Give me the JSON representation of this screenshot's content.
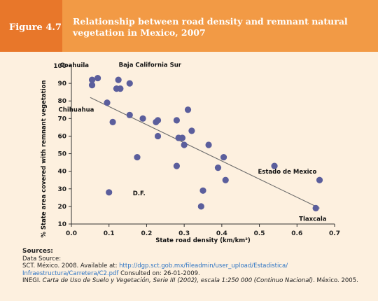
{
  "header": {
    "figure_label": "Figure 4.7",
    "title": "Relationship between road density and remnant natural vegetation in Mexico, 2007",
    "colors": {
      "bar": "#f29a45",
      "tab": "#e8772a",
      "background": "#fdf0df",
      "marker": "#5b5e9c"
    }
  },
  "chart_data": {
    "type": "scatter",
    "title": "Relationship between road density and remnant natural vegetation in Mexico, 2007",
    "xlabel": "State road density (km/km²)",
    "ylabel": "% State area covered with remnant vegetation",
    "xlim": [
      0,
      0.7
    ],
    "ylim": [
      10,
      100
    ],
    "x_ticks": [
      "0.0",
      "0.1",
      "0.2",
      "0.3",
      "0.4",
      "0.5",
      "0.6",
      "0.7"
    ],
    "y_ticks": [
      "10",
      "20",
      "30",
      "40",
      "50",
      "60",
      "70",
      "80",
      "90",
      "100"
    ],
    "grid": false,
    "trendline": {
      "x": [
        0.05,
        0.66
      ],
      "y": [
        82,
        19
      ]
    },
    "points": [
      {
        "x": 0.055,
        "y": 92
      },
      {
        "x": 0.07,
        "y": 93
      },
      {
        "x": 0.055,
        "y": 89
      },
      {
        "x": 0.125,
        "y": 92
      },
      {
        "x": 0.155,
        "y": 90
      },
      {
        "x": 0.12,
        "y": 87
      },
      {
        "x": 0.13,
        "y": 87
      },
      {
        "x": 0.095,
        "y": 79
      },
      {
        "x": 0.31,
        "y": 75
      },
      {
        "x": 0.155,
        "y": 72
      },
      {
        "x": 0.19,
        "y": 70
      },
      {
        "x": 0.11,
        "y": 68
      },
      {
        "x": 0.225,
        "y": 68
      },
      {
        "x": 0.23,
        "y": 69
      },
      {
        "x": 0.28,
        "y": 69
      },
      {
        "x": 0.32,
        "y": 63
      },
      {
        "x": 0.23,
        "y": 60
      },
      {
        "x": 0.285,
        "y": 59
      },
      {
        "x": 0.295,
        "y": 59
      },
      {
        "x": 0.3,
        "y": 55
      },
      {
        "x": 0.365,
        "y": 55
      },
      {
        "x": 0.175,
        "y": 48
      },
      {
        "x": 0.405,
        "y": 48
      },
      {
        "x": 0.28,
        "y": 43
      },
      {
        "x": 0.39,
        "y": 42
      },
      {
        "x": 0.54,
        "y": 43
      },
      {
        "x": 0.41,
        "y": 35
      },
      {
        "x": 0.35,
        "y": 29
      },
      {
        "x": 0.66,
        "y": 35
      },
      {
        "x": 0.1,
        "y": 28
      },
      {
        "x": 0.345,
        "y": 20
      },
      {
        "x": 0.65,
        "y": 19
      }
    ],
    "annotations": [
      {
        "text": "Coahuila",
        "x": 0.055,
        "y": 92
      },
      {
        "text": "Baja California Sur",
        "x": 0.07,
        "y": 93
      },
      {
        "text": "Chihuahua",
        "x": 0.055,
        "y": 89
      },
      {
        "text": "Estado de Mexico",
        "x": 0.66,
        "y": 35
      },
      {
        "text": "D.F.",
        "x": 0.1,
        "y": 28
      },
      {
        "text": "Tlaxcala",
        "x": 0.65,
        "y": 19
      }
    ]
  },
  "sources": {
    "heading": "Sources:",
    "line1": "Data Source:",
    "line2_pre": "SCT. México. 2008. Available at: ",
    "line2_link": "http://dgp.sct.gob.mx/fileadmin/user_upload/Estadistica/",
    "line3_link": "Infraestructura/Carretera/C2.pdf",
    "line3_post": " Consulted on: 26-01-2009.",
    "line4_pre": "INEGI. ",
    "line4_italic": "Carta de Uso de Suelo y Vegetación, Serie III (2002), escala 1:250 000 (Continuo Nacional)",
    "line4_post": ". México. 2005."
  }
}
